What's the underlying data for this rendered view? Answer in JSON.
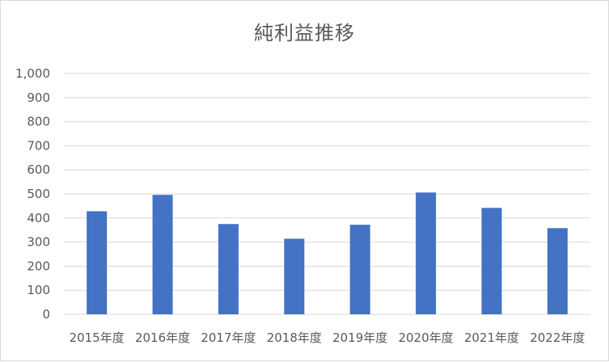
{
  "chart_data": {
    "type": "bar",
    "title": "純利益推移",
    "categories": [
      "2015年度",
      "2016年度",
      "2017年度",
      "2018年度",
      "2019年度",
      "2020年度",
      "2021年度",
      "2022年度"
    ],
    "series": [
      {
        "values": [
          428,
          496,
          375,
          314,
          372,
          506,
          442,
          358
        ]
      }
    ],
    "ylim": [
      0,
      1000
    ],
    "yticks": [
      "0",
      "100",
      "200",
      "300",
      "400",
      "500",
      "600",
      "700",
      "800",
      "900",
      "1,000"
    ],
    "grid": true,
    "legend": "none",
    "colors": {
      "bar": "#4472C4",
      "grid": "#d9d9d9",
      "text": "#595959"
    }
  }
}
